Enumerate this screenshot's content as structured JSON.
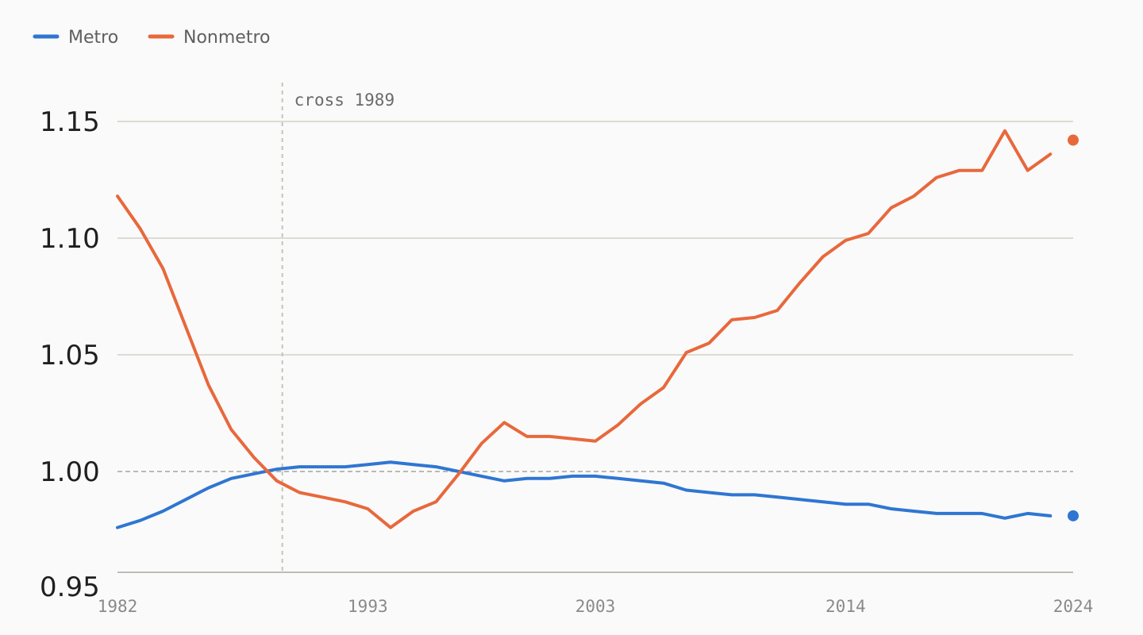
{
  "chart_data": {
    "type": "line",
    "title": "",
    "xlabel": "",
    "ylabel": "",
    "xlim": [
      1982,
      2024
    ],
    "ylim": [
      0.95,
      1.17
    ],
    "yticks": [
      "1.15",
      "1.10",
      "1.05",
      "1.00",
      "0.95"
    ],
    "ytick_values": [
      1.15,
      1.1,
      1.05,
      1.0,
      0.95
    ],
    "xticks": [
      "1982",
      "1993",
      "2003",
      "2014",
      "2024"
    ],
    "xtick_values": [
      1982,
      1993,
      2003,
      2014,
      2024
    ],
    "reference_line": 1.0,
    "legend_position": "top-left",
    "grid": true,
    "annotations": [
      {
        "label": "cross 1989",
        "x": 1989
      }
    ],
    "x": [
      1982,
      1983,
      1984,
      1985,
      1986,
      1987,
      1988,
      1989,
      1990,
      1991,
      1992,
      1993,
      1994,
      1995,
      1996,
      1997,
      1998,
      1999,
      2000,
      2001,
      2002,
      2003,
      2004,
      2005,
      2006,
      2007,
      2008,
      2009,
      2010,
      2011,
      2012,
      2013,
      2014,
      2015,
      2016,
      2017,
      2018,
      2019,
      2020,
      2021,
      2022,
      2023,
      2024
    ],
    "series": [
      {
        "name": "Metro",
        "color": "#2f76d2",
        "values": [
          0.976,
          0.979,
          0.983,
          0.988,
          0.993,
          0.997,
          0.999,
          1.001,
          1.002,
          1.002,
          1.002,
          1.003,
          1.004,
          1.003,
          1.002,
          1.0,
          0.998,
          0.996,
          0.997,
          0.997,
          0.998,
          0.998,
          0.997,
          0.996,
          0.995,
          0.992,
          0.991,
          0.99,
          0.99,
          0.989,
          0.988,
          0.987,
          0.986,
          0.986,
          0.984,
          0.983,
          0.982,
          0.982,
          0.982,
          0.98,
          0.982,
          0.981,
          0.981
        ]
      },
      {
        "name": "Nonmetro",
        "color": "#e8683c",
        "values": [
          1.118,
          1.104,
          1.087,
          1.062,
          1.037,
          1.018,
          1.006,
          0.996,
          0.991,
          0.989,
          0.987,
          0.984,
          0.976,
          0.983,
          0.987,
          0.999,
          1.012,
          1.021,
          1.015,
          1.015,
          1.014,
          1.013,
          1.02,
          1.029,
          1.036,
          1.051,
          1.055,
          1.065,
          1.066,
          1.069,
          1.081,
          1.092,
          1.099,
          1.102,
          1.113,
          1.118,
          1.126,
          1.129,
          1.129,
          1.146,
          1.129,
          1.136,
          1.142
        ]
      }
    ]
  }
}
